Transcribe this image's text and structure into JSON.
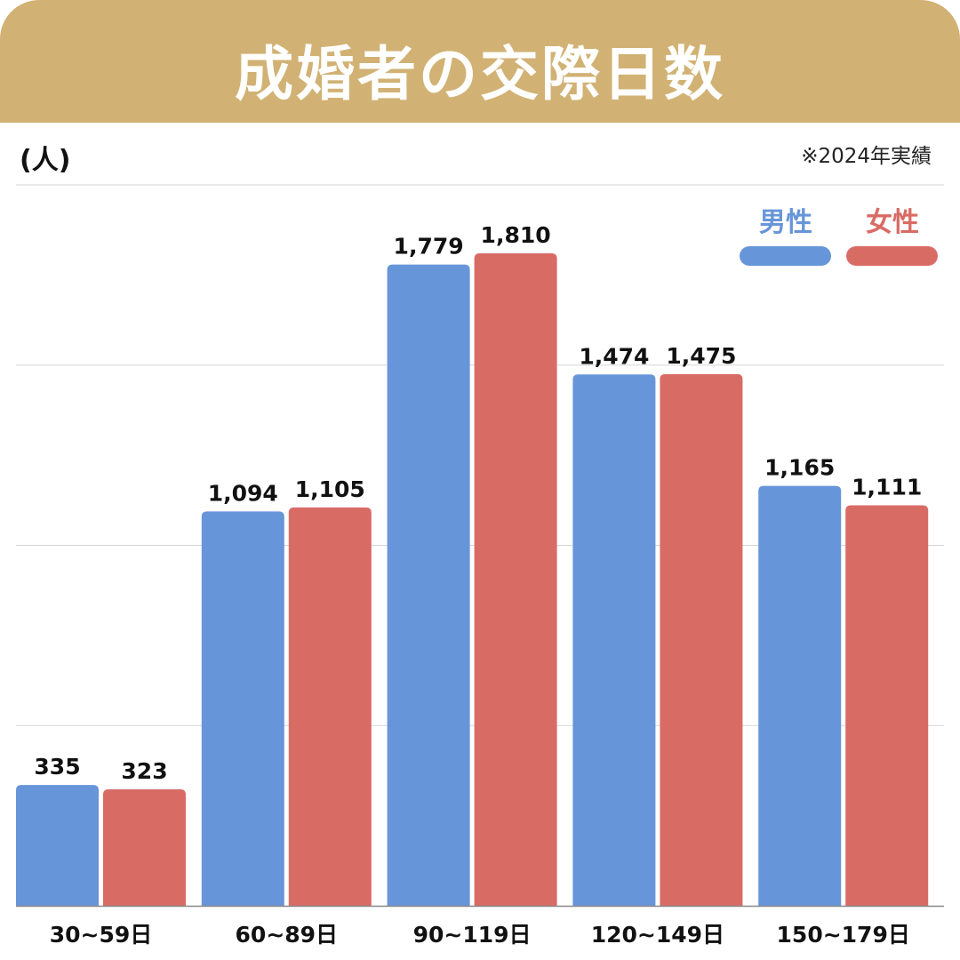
{
  "header": {
    "title": "成婚者の交際日数"
  },
  "unit_label": "(人)",
  "note": "※2024年実績",
  "colors": {
    "header": "#d1b274",
    "male": "#6795d9",
    "female": "#d96b65",
    "grid": "#d5d5d5"
  },
  "chart_data": {
    "type": "bar",
    "title": "成婚者の交際日数",
    "ylabel": "(人)",
    "xlabel": "",
    "categories": [
      "30~59日",
      "60~89日",
      "90~119日",
      "120~149日",
      "150~179日"
    ],
    "series": [
      {
        "name": "男性",
        "values": [
          335,
          1094,
          1779,
          1474,
          1165
        ],
        "labels": [
          "335",
          "1,094",
          "1,779",
          "1,474",
          "1,165"
        ]
      },
      {
        "name": "女性",
        "values": [
          323,
          1105,
          1810,
          1475,
          1111
        ],
        "labels": [
          "323",
          "1,105",
          "1,810",
          "1,475",
          "1,111"
        ]
      }
    ],
    "ylim": [
      0,
      2000
    ],
    "grid": true,
    "legend": "top-right"
  }
}
